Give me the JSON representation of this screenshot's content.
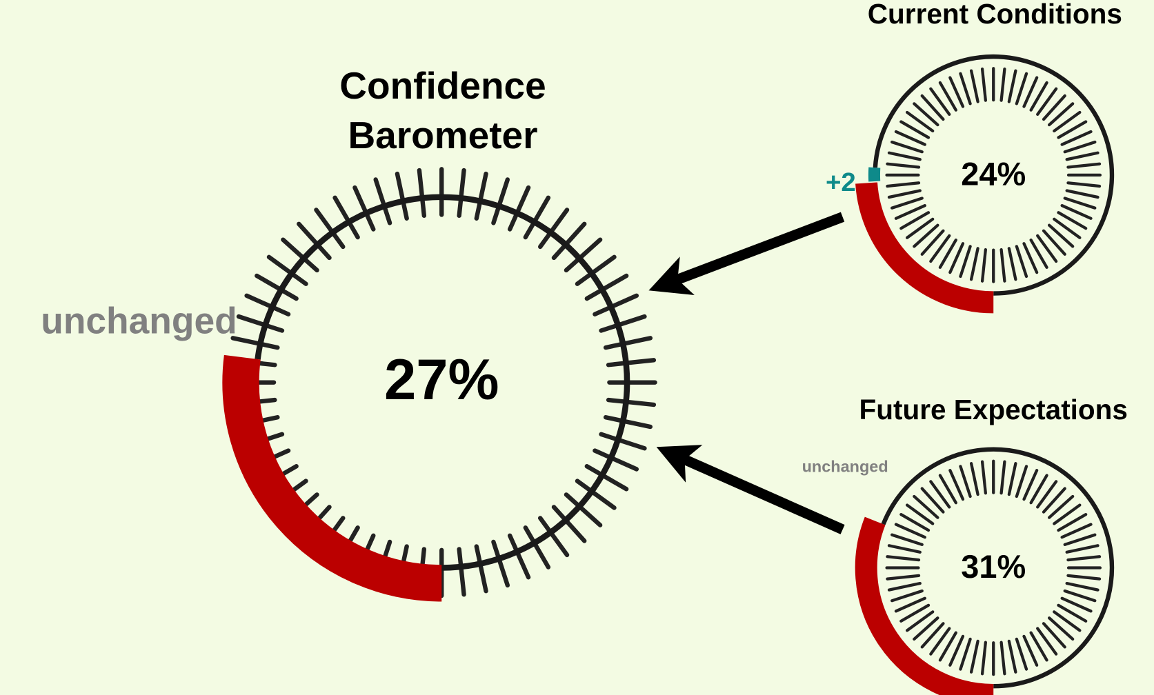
{
  "chart_data": [
    {
      "type": "gauge",
      "title": "Confidence Barometer",
      "value": 27,
      "value_label": "27%",
      "ylim": [
        0,
        100
      ],
      "change": 0,
      "change_label": "unchanged",
      "color": "#bb0000",
      "change_color": "#0e8a8a"
    },
    {
      "type": "gauge",
      "title": "Current Conditions",
      "value": 24,
      "value_label": "24%",
      "ylim": [
        0,
        100
      ],
      "change": 2,
      "change_label": "+2",
      "color": "#bb0000",
      "change_color": "#0e8a8a"
    },
    {
      "type": "gauge",
      "title": "Future Expectations",
      "value": 31,
      "value_label": "31%",
      "ylim": [
        0,
        100
      ],
      "change": 0,
      "change_label": "unchanged",
      "color": "#bb0000",
      "change_color": "#0e8a8a"
    }
  ]
}
